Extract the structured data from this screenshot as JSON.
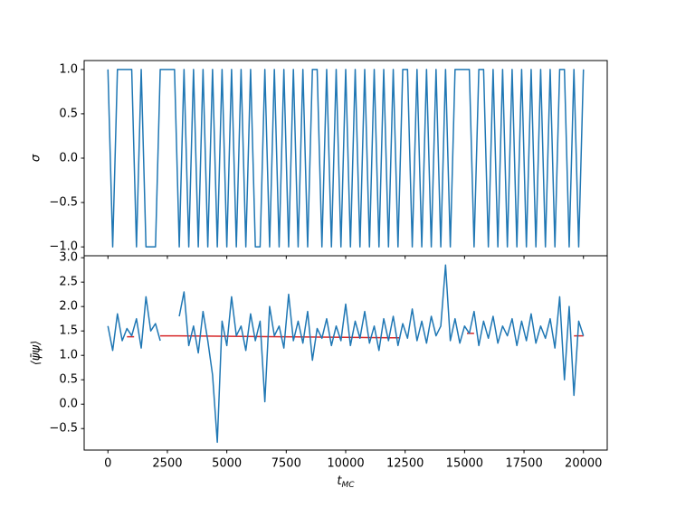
{
  "chart_data": [
    {
      "type": "line",
      "ylabel": "σ",
      "xlim": [
        -1000,
        21000
      ],
      "xticks": [
        0,
        2500,
        5000,
        7500,
        10000,
        12500,
        15000,
        17500,
        20000
      ],
      "ylim": [
        -1.1,
        1.1
      ],
      "yticks": [
        {
          "value": -1.0,
          "label": "−1.0"
        },
        {
          "value": -0.5,
          "label": "−0.5"
        },
        {
          "value": 0.0,
          "label": "0.0"
        },
        {
          "value": 0.5,
          "label": "0.5"
        },
        {
          "value": 1.0,
          "label": "1.0"
        }
      ],
      "series": [
        {
          "color": "#1f77b4",
          "x": [
            0,
            200,
            400,
            600,
            800,
            1000,
            1200,
            1400,
            1600,
            1800,
            2000,
            2200,
            2400,
            2600,
            2800,
            3000,
            3200,
            3400,
            3600,
            3800,
            4000,
            4200,
            4400,
            4600,
            4800,
            5000,
            5200,
            5400,
            5600,
            5800,
            6000,
            6200,
            6400,
            6600,
            6800,
            7000,
            7200,
            7400,
            7600,
            7800,
            8000,
            8200,
            8400,
            8600,
            8800,
            9000,
            9200,
            9400,
            9600,
            9800,
            10000,
            10200,
            10400,
            10600,
            10800,
            11000,
            11200,
            11400,
            11600,
            11800,
            12000,
            12200,
            12400,
            12600,
            12800,
            13000,
            13200,
            13400,
            13600,
            13800,
            14000,
            14200,
            14400,
            14600,
            14800,
            15000,
            15200,
            15400,
            15600,
            15800,
            16000,
            16200,
            16400,
            16600,
            16800,
            17000,
            17200,
            17400,
            17600,
            17800,
            18000,
            18200,
            18400,
            18600,
            18800,
            19000,
            19200,
            19400,
            19600,
            19800,
            20000
          ],
          "values": [
            1,
            -1,
            1,
            1,
            1,
            1,
            -1,
            1,
            -1,
            -1,
            -1,
            1,
            1,
            1,
            1,
            -1,
            1,
            -1,
            1,
            -1,
            1,
            -1,
            1,
            -1,
            1,
            -1,
            1,
            -1,
            1,
            -1,
            1,
            -1,
            -1,
            1,
            -1,
            1,
            -1,
            1,
            -1,
            1,
            -1,
            1,
            -1,
            1,
            1,
            -1,
            1,
            -1,
            1,
            -1,
            1,
            -1,
            1,
            -1,
            1,
            -1,
            1,
            -1,
            1,
            -1,
            1,
            -1,
            1,
            1,
            -1,
            1,
            -1,
            1,
            -1,
            1,
            -1,
            1,
            -1,
            1,
            1,
            1,
            1,
            -1,
            1,
            1,
            -1,
            1,
            -1,
            1,
            -1,
            1,
            -1,
            1,
            -1,
            1,
            -1,
            1,
            -1,
            1,
            -1,
            1,
            1,
            -1,
            1,
            -1,
            1
          ]
        }
      ]
    },
    {
      "type": "line",
      "xlabel": "t",
      "xlabel_sub": "MC",
      "ylabel": "⟨ψ̄ψ⟩",
      "xlim": [
        -1000,
        21000
      ],
      "xticks": [
        0,
        2500,
        5000,
        7500,
        10000,
        12500,
        15000,
        17500,
        20000
      ],
      "ylim": [
        -0.94,
        3.04
      ],
      "yticks": [
        {
          "value": -0.5,
          "label": "−0.5"
        },
        {
          "value": 0.0,
          "label": "0.0"
        },
        {
          "value": 0.5,
          "label": "0.5"
        },
        {
          "value": 1.0,
          "label": "1.0"
        },
        {
          "value": 1.5,
          "label": "1.5"
        },
        {
          "value": 2.0,
          "label": "2.0"
        },
        {
          "value": 2.5,
          "label": "2.5"
        },
        {
          "value": 3.0,
          "label": "3.0"
        }
      ],
      "series": [
        {
          "color": "#d62728",
          "x": [
            800,
            1100,
            1150,
            2200,
            2950,
            11900,
            12300,
            12350,
            15100,
            15400,
            15450,
            19600,
            20000
          ],
          "values": [
            1.38,
            1.38,
            null,
            1.4,
            1.4,
            1.36,
            1.36,
            null,
            1.45,
            1.45,
            null,
            1.4,
            1.4
          ]
        },
        {
          "color": "#1f77b4",
          "x": [
            0,
            200,
            400,
            600,
            800,
            1000,
            1200,
            1400,
            1600,
            1800,
            2000,
            2200,
            2400,
            2600,
            2800,
            3000,
            3200,
            3400,
            3600,
            3800,
            4000,
            4200,
            4400,
            4600,
            4800,
            5000,
            5200,
            5400,
            5600,
            5800,
            6000,
            6200,
            6400,
            6600,
            6800,
            7000,
            7200,
            7400,
            7600,
            7800,
            8000,
            8200,
            8400,
            8600,
            8800,
            9000,
            9200,
            9400,
            9600,
            9800,
            10000,
            10200,
            10400,
            10600,
            10800,
            11000,
            11200,
            11400,
            11600,
            11800,
            12000,
            12200,
            12400,
            12600,
            12800,
            13000,
            13200,
            13400,
            13600,
            13800,
            14000,
            14200,
            14400,
            14600,
            14800,
            15000,
            15200,
            15400,
            15600,
            15800,
            16000,
            16200,
            16400,
            16600,
            16800,
            17000,
            17200,
            17400,
            17600,
            17800,
            18000,
            18200,
            18400,
            18600,
            18800,
            19000,
            19200,
            19400,
            19600,
            19800,
            20000
          ],
          "values": [
            1.6,
            1.1,
            1.85,
            1.3,
            1.55,
            1.4,
            1.75,
            1.15,
            2.2,
            1.5,
            1.65,
            1.3,
            null,
            null,
            null,
            1.8,
            2.3,
            1.2,
            1.6,
            1.05,
            1.9,
            1.3,
            0.6,
            -0.78,
            1.7,
            1.2,
            2.2,
            1.4,
            1.6,
            1.1,
            1.85,
            1.3,
            1.7,
            0.05,
            2.0,
            1.4,
            1.6,
            1.15,
            2.25,
            1.3,
            1.7,
            1.25,
            1.9,
            0.9,
            1.55,
            1.35,
            1.75,
            1.2,
            1.6,
            1.3,
            2.05,
            1.2,
            1.7,
            1.35,
            1.9,
            1.25,
            1.6,
            1.1,
            1.75,
            1.3,
            1.8,
            1.2,
            1.65,
            1.35,
            1.95,
            1.3,
            1.7,
            1.25,
            1.8,
            1.4,
            1.6,
            2.85,
            1.3,
            1.75,
            1.25,
            1.6,
            1.45,
            1.9,
            1.2,
            1.7,
            1.35,
            1.8,
            1.25,
            1.6,
            1.4,
            1.75,
            1.2,
            1.7,
            1.3,
            1.85,
            1.25,
            1.6,
            1.35,
            1.75,
            1.15,
            2.2,
            0.5,
            2.0,
            0.18,
            1.7,
            1.4
          ]
        }
      ]
    }
  ]
}
